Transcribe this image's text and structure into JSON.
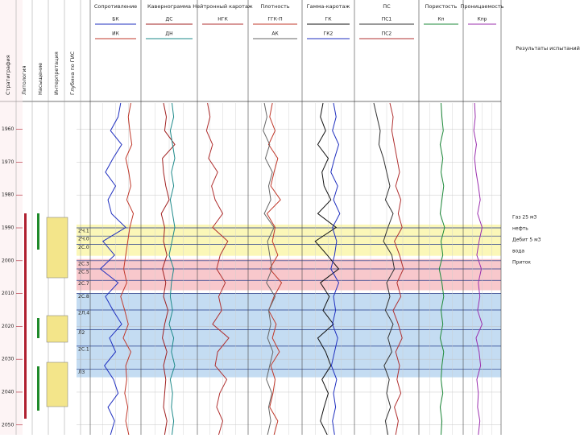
{
  "depth": {
    "ylim": [
      1952,
      2053
    ],
    "ticks": [
      1960,
      1970,
      1980,
      1990,
      2000,
      2010,
      2020,
      2030,
      2040,
      2050
    ]
  },
  "header_columns": [
    "Стратиграфия",
    "Литология",
    "Насыщение",
    "Интерпретация",
    "Глубина по ГИС"
  ],
  "tracks": [
    {
      "title": "Сопротивление",
      "curves": [
        {
          "name": "БК",
          "color": "#1f2fbf",
          "values": [
            60,
            55,
            40,
            62,
            45,
            30,
            50,
            35,
            42,
            70,
            25,
            48,
            20,
            55,
            30,
            45,
            62,
            38,
            50,
            28,
            46,
            55,
            35,
            48,
            40
          ]
        },
        {
          "name": "ИК",
          "color": "#c0392b",
          "values": [
            80,
            75,
            78,
            82,
            70,
            76,
            80,
            72,
            85,
            78,
            74,
            70,
            66,
            72,
            60,
            68,
            75,
            65,
            80,
            70,
            72,
            68,
            74,
            70,
            76
          ]
        }
      ]
    },
    {
      "title": "Кавернограмма",
      "curves": [
        {
          "name": "ДС",
          "color": "#a02020",
          "values": [
            40,
            45,
            42,
            60,
            38,
            40,
            44,
            50,
            36,
            42,
            40,
            46,
            38,
            44,
            40,
            48,
            42,
            38,
            46,
            40,
            44,
            42,
            40,
            46,
            42
          ]
        },
        {
          "name": "ДН",
          "color": "#1e8a8a",
          "values": [
            55,
            58,
            52,
            56,
            60,
            54,
            58,
            52,
            56,
            60,
            55,
            50,
            58,
            54,
            52,
            56,
            50,
            58,
            54,
            60,
            52,
            56,
            54,
            58,
            55
          ]
        }
      ]
    },
    {
      "title": "Нейтронный каротаж",
      "curves": [
        {
          "name": "НГК",
          "color": "#b03030",
          "values": [
            20,
            25,
            18,
            30,
            22,
            40,
            28,
            35,
            50,
            30,
            60,
            45,
            38,
            55,
            42,
            48,
            30,
            62,
            40,
            35,
            58,
            44,
            38,
            50,
            42
          ]
        }
      ]
    },
    {
      "title": "Плотность",
      "curves": [
        {
          "name": "ГГК-П",
          "color": "#c0392b",
          "values": [
            45,
            40,
            50,
            38,
            55,
            48,
            42,
            60,
            35,
            50,
            45,
            55,
            40,
            62,
            48,
            38,
            52,
            45,
            58,
            42,
            50,
            46,
            40,
            55,
            48
          ]
        },
        {
          "name": "АК",
          "color": "#666666",
          "values": [
            30,
            35,
            28,
            40,
            32,
            45,
            38,
            42,
            30,
            48,
            36,
            40,
            44,
            34,
            50,
            38,
            42,
            36,
            46,
            40,
            34,
            44,
            38,
            42,
            36
          ]
        }
      ]
    },
    {
      "title": "Гамма-каротаж",
      "curves": [
        {
          "name": "ГК",
          "color": "#111111",
          "values": [
            40,
            35,
            45,
            30,
            50,
            38,
            42,
            55,
            30,
            65,
            25,
            48,
            70,
            35,
            52,
            40,
            60,
            30,
            45,
            55,
            38,
            50,
            42,
            35,
            48
          ]
        },
        {
          "name": "ГК2",
          "color": "#1f2fbf",
          "values": [
            60,
            65,
            58,
            70,
            62,
            55,
            68,
            60,
            72,
            58,
            66,
            62,
            55,
            70,
            60,
            64,
            58,
            68,
            62,
            56,
            66,
            60,
            64,
            58,
            62
          ]
        }
      ]
    },
    {
      "title": "ПС",
      "curves": [
        {
          "name": "ПС1",
          "color": "#333333",
          "values": [
            30,
            35,
            40,
            38,
            45,
            50,
            55,
            48,
            60,
            52,
            45,
            58,
            62,
            50,
            55,
            48,
            60,
            52,
            58,
            46,
            54,
            50,
            56,
            48,
            52
          ]
        },
        {
          "name": "ПС2",
          "color": "#b03030",
          "values": [
            55,
            60,
            58,
            62,
            66,
            70,
            64,
            72,
            68,
            74,
            62,
            70,
            76,
            66,
            72,
            60,
            68,
            74,
            64,
            70,
            66,
            72,
            62,
            68,
            64
          ]
        }
      ]
    },
    {
      "title": "Пористость",
      "curves": [
        {
          "name": "Кп",
          "color": "#1e8a3a",
          "values": [
            50,
            52,
            55,
            48,
            54,
            50,
            56,
            52,
            48,
            58,
            50,
            54,
            46,
            52,
            56,
            50,
            54,
            48,
            56,
            52,
            50,
            54,
            48,
            52,
            50
          ]
        }
      ]
    },
    {
      "title": "Проницаемость",
      "curves": [
        {
          "name": "Кпр",
          "color": "#9b2fae",
          "values": [
            30,
            32,
            28,
            35,
            30,
            34,
            40,
            45,
            38,
            50,
            42,
            36,
            48,
            40,
            44,
            38,
            50,
            34,
            42,
            46,
            36,
            40,
            38,
            44,
            40
          ]
        }
      ]
    }
  ],
  "zones": [
    {
      "label": "2Ч.1",
      "depth": 1990
    },
    {
      "label": "2Ч.0",
      "depth": 1992.5
    },
    {
      "label": "2С.0",
      "depth": 1995
    },
    {
      "label": "2С.3",
      "depth": 2000
    },
    {
      "label": "2С.5",
      "depth": 2002.5
    },
    {
      "label": "2С.7",
      "depth": 2006
    },
    {
      "label": "2С.8",
      "depth": 2010
    },
    {
      "label": "2Л.4",
      "depth": 2015
    },
    {
      "label": "Л2",
      "depth": 2021
    },
    {
      "label": "2С.1",
      "depth": 2026
    },
    {
      "label": "Л3",
      "depth": 2033
    }
  ],
  "bands": [
    {
      "color": "#fbf7b8",
      "top": 1989,
      "bottom": 1998.5
    },
    {
      "color": "#f8c8cc",
      "top": 1999.5,
      "bottom": 2009
    },
    {
      "color": "#c4dcf2",
      "top": 2010,
      "bottom": 2035.5
    }
  ],
  "test_results": {
    "title": "Результаты испытаний",
    "items": [
      "Газ 25 м3",
      "нефть",
      "Дебит 5 м3",
      "вода",
      "Приток"
    ]
  }
}
